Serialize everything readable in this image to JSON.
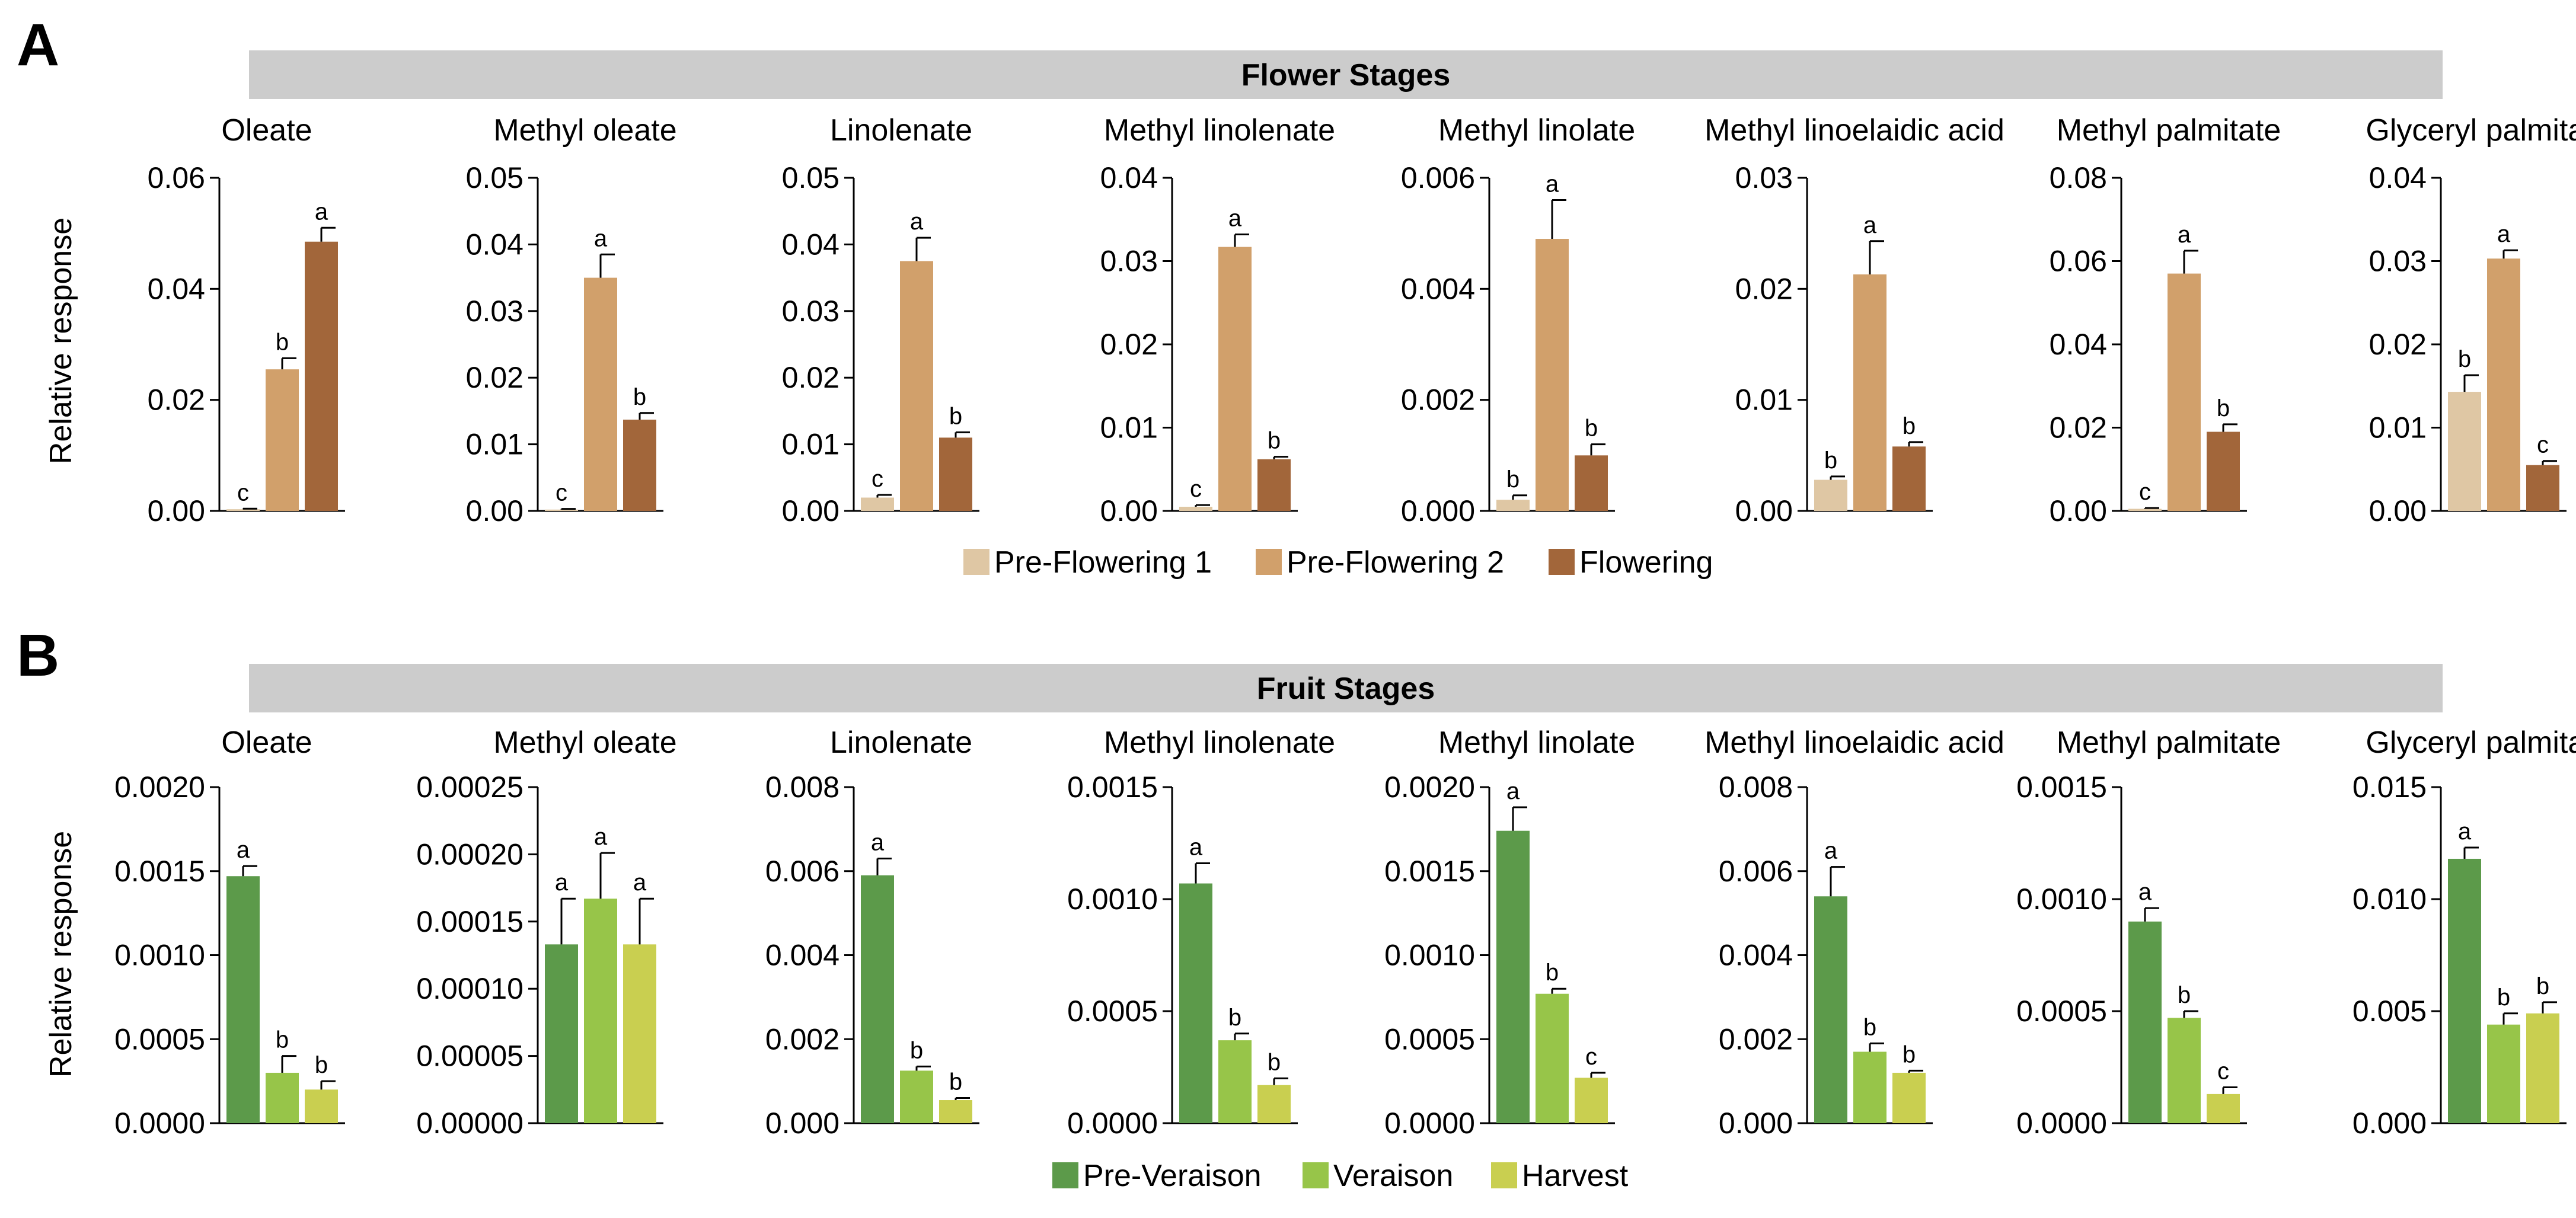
{
  "panels": [
    {
      "letter": "A",
      "banner": "Flower Stages",
      "ylabel": "Relative response",
      "legend": [
        {
          "label": "Pre-Flowering 1",
          "color": "#dfc7a4"
        },
        {
          "label": "Pre-Flowering 2",
          "color": "#d1a06b"
        },
        {
          "label": "Flowering",
          "color": "#a2663a"
        }
      ]
    },
    {
      "letter": "B",
      "banner": "Fruit Stages",
      "ylabel": "Relative response",
      "legend": [
        {
          "label": "Pre-Veraison",
          "color": "#5c9a4a"
        },
        {
          "label": "Veraison",
          "color": "#97c549"
        },
        {
          "label": "Harvest",
          "color": "#c9cf50"
        }
      ]
    }
  ],
  "chart_data": [
    {
      "type": "bar",
      "panel": "A",
      "title": "Oleate",
      "ylabel": "Relative response",
      "ylim": [
        0,
        0.06
      ],
      "ticks": [
        "0.00",
        "0.02",
        "0.04",
        "0.06"
      ],
      "series": [
        {
          "name": "Pre-Flowering 1",
          "value": 0.0003,
          "err": 0.0001,
          "letter": "c"
        },
        {
          "name": "Pre-Flowering 2",
          "value": 0.0255,
          "err": 0.002,
          "letter": "b"
        },
        {
          "name": "Flowering",
          "value": 0.0485,
          "err": 0.0025,
          "letter": "a"
        }
      ]
    },
    {
      "type": "bar",
      "panel": "A",
      "title": "Methyl oleate",
      "ylim": [
        0,
        0.05
      ],
      "ticks": [
        "0.00",
        "0.01",
        "0.02",
        "0.03",
        "0.04",
        "0.05"
      ],
      "series": [
        {
          "name": "Pre-Flowering 1",
          "value": 0.0002,
          "err": 0.0001,
          "letter": "c"
        },
        {
          "name": "Pre-Flowering 2",
          "value": 0.035,
          "err": 0.0035,
          "letter": "a"
        },
        {
          "name": "Flowering",
          "value": 0.0137,
          "err": 0.001,
          "letter": "b"
        }
      ]
    },
    {
      "type": "bar",
      "panel": "A",
      "title": "Linolenate",
      "ylim": [
        0,
        0.05
      ],
      "ticks": [
        "0.00",
        "0.01",
        "0.02",
        "0.03",
        "0.04",
        "0.05"
      ],
      "series": [
        {
          "name": "Pre-Flowering 1",
          "value": 0.002,
          "err": 0.0004,
          "letter": "c"
        },
        {
          "name": "Pre-Flowering 2",
          "value": 0.0375,
          "err": 0.0035,
          "letter": "a"
        },
        {
          "name": "Flowering",
          "value": 0.011,
          "err": 0.0008,
          "letter": "b"
        }
      ]
    },
    {
      "type": "bar",
      "panel": "A",
      "title": "Methyl linolenate",
      "ylim": [
        0,
        0.04
      ],
      "ticks": [
        "0.00",
        "0.01",
        "0.02",
        "0.03",
        "0.04"
      ],
      "series": [
        {
          "name": "Pre-Flowering 1",
          "value": 0.0005,
          "err": 0.0002,
          "letter": "c"
        },
        {
          "name": "Pre-Flowering 2",
          "value": 0.0317,
          "err": 0.0015,
          "letter": "a"
        },
        {
          "name": "Flowering",
          "value": 0.0062,
          "err": 0.0003,
          "letter": "b"
        }
      ]
    },
    {
      "type": "bar",
      "panel": "A",
      "title": "Methyl linolate",
      "ylim": [
        0,
        0.006
      ],
      "ticks": [
        "0.000",
        "0.002",
        "0.004",
        "0.006"
      ],
      "series": [
        {
          "name": "Pre-Flowering 1",
          "value": 0.0002,
          "err": 8e-05,
          "letter": "b"
        },
        {
          "name": "Pre-Flowering 2",
          "value": 0.0049,
          "err": 0.0007,
          "letter": "a"
        },
        {
          "name": "Flowering",
          "value": 0.001,
          "err": 0.0002,
          "letter": "b"
        }
      ]
    },
    {
      "type": "bar",
      "panel": "A",
      "title": "Methyl linoelaidic acid",
      "ylim": [
        0,
        0.03
      ],
      "ticks": [
        "0.00",
        "0.01",
        "0.02",
        "0.03"
      ],
      "series": [
        {
          "name": "Pre-Flowering 1",
          "value": 0.0028,
          "err": 0.0003,
          "letter": "b"
        },
        {
          "name": "Pre-Flowering 2",
          "value": 0.0213,
          "err": 0.003,
          "letter": "a"
        },
        {
          "name": "Flowering",
          "value": 0.0058,
          "err": 0.0004,
          "letter": "b"
        }
      ]
    },
    {
      "type": "bar",
      "panel": "A",
      "title": "Methyl palmitate",
      "ylim": [
        0,
        0.08
      ],
      "ticks": [
        "0.00",
        "0.02",
        "0.04",
        "0.06",
        "0.08"
      ],
      "series": [
        {
          "name": "Pre-Flowering 1",
          "value": 0.0005,
          "err": 0.0002,
          "letter": "c"
        },
        {
          "name": "Pre-Flowering 2",
          "value": 0.057,
          "err": 0.0055,
          "letter": "a"
        },
        {
          "name": "Flowering",
          "value": 0.019,
          "err": 0.0018,
          "letter": "b"
        }
      ]
    },
    {
      "type": "bar",
      "panel": "A",
      "title": "Glyceryl palmitate",
      "ylim": [
        0,
        0.04
      ],
      "ticks": [
        "0.00",
        "0.01",
        "0.02",
        "0.03",
        "0.04"
      ],
      "series": [
        {
          "name": "Pre-Flowering 1",
          "value": 0.0143,
          "err": 0.002,
          "letter": "b"
        },
        {
          "name": "Pre-Flowering 2",
          "value": 0.0303,
          "err": 0.001,
          "letter": "a"
        },
        {
          "name": "Flowering",
          "value": 0.0055,
          "err": 0.0005,
          "letter": "c"
        }
      ]
    },
    {
      "type": "bar",
      "panel": "B",
      "title": "Oleate",
      "ylabel": "Relative response",
      "ylim": [
        0,
        0.002
      ],
      "ticks": [
        "0.0000",
        "0.0005",
        "0.0010",
        "0.0015",
        "0.0020"
      ],
      "series": [
        {
          "name": "Pre-Veraison",
          "value": 0.00147,
          "err": 6e-05,
          "letter": "a"
        },
        {
          "name": "Veraison",
          "value": 0.0003,
          "err": 0.0001,
          "letter": "b"
        },
        {
          "name": "Harvest",
          "value": 0.0002,
          "err": 5e-05,
          "letter": "b"
        }
      ]
    },
    {
      "type": "bar",
      "panel": "B",
      "title": "Methyl oleate",
      "ylim": [
        0,
        0.00025
      ],
      "ticks": [
        "0.00000",
        "0.00005",
        "0.00010",
        "0.00015",
        "0.00020",
        "0.00025"
      ],
      "series": [
        {
          "name": "Pre-Veraison",
          "value": 0.000133,
          "err": 3.4e-05,
          "letter": "a"
        },
        {
          "name": "Veraison",
          "value": 0.000167,
          "err": 3.4e-05,
          "letter": "a"
        },
        {
          "name": "Harvest",
          "value": 0.000133,
          "err": 3.4e-05,
          "letter": "a"
        }
      ]
    },
    {
      "type": "bar",
      "panel": "B",
      "title": "Linolenate",
      "ylim": [
        0,
        0.008
      ],
      "ticks": [
        "0.000",
        "0.002",
        "0.004",
        "0.006",
        "0.008"
      ],
      "series": [
        {
          "name": "Pre-Veraison",
          "value": 0.0059,
          "err": 0.0004,
          "letter": "a"
        },
        {
          "name": "Veraison",
          "value": 0.00125,
          "err": 0.0001,
          "letter": "b"
        },
        {
          "name": "Harvest",
          "value": 0.00055,
          "err": 5e-05,
          "letter": "b"
        }
      ]
    },
    {
      "type": "bar",
      "panel": "B",
      "title": "Methyl linolenate",
      "ylim": [
        0,
        0.0015
      ],
      "ticks": [
        "0.0000",
        "0.0005",
        "0.0010",
        "0.0015"
      ],
      "series": [
        {
          "name": "Pre-Veraison",
          "value": 0.00107,
          "err": 9e-05,
          "letter": "a"
        },
        {
          "name": "Veraison",
          "value": 0.00037,
          "err": 3e-05,
          "letter": "b"
        },
        {
          "name": "Harvest",
          "value": 0.00017,
          "err": 3e-05,
          "letter": "b"
        }
      ]
    },
    {
      "type": "bar",
      "panel": "B",
      "title": "Methyl linolate",
      "ylim": [
        0,
        0.002
      ],
      "ticks": [
        "0.0000",
        "0.0005",
        "0.0010",
        "0.0015",
        "0.0020"
      ],
      "series": [
        {
          "name": "Pre-Veraison",
          "value": 0.00174,
          "err": 0.00014,
          "letter": "a"
        },
        {
          "name": "Veraison",
          "value": 0.00077,
          "err": 3e-05,
          "letter": "b"
        },
        {
          "name": "Harvest",
          "value": 0.00027,
          "err": 3e-05,
          "letter": "c"
        }
      ]
    },
    {
      "type": "bar",
      "panel": "B",
      "title": "Methyl linoelaidic acid",
      "ylim": [
        0,
        0.008
      ],
      "ticks": [
        "0.000",
        "0.002",
        "0.004",
        "0.006",
        "0.008"
      ],
      "series": [
        {
          "name": "Pre-Veraison",
          "value": 0.0054,
          "err": 0.0007,
          "letter": "a"
        },
        {
          "name": "Veraison",
          "value": 0.0017,
          "err": 0.0002,
          "letter": "b"
        },
        {
          "name": "Harvest",
          "value": 0.0012,
          "err": 5e-05,
          "letter": "b"
        }
      ]
    },
    {
      "type": "bar",
      "panel": "B",
      "title": "Methyl palmitate",
      "ylim": [
        0,
        0.0015
      ],
      "ticks": [
        "0.0000",
        "0.0005",
        "0.0010",
        "0.0015"
      ],
      "series": [
        {
          "name": "Pre-Veraison",
          "value": 0.0009,
          "err": 6e-05,
          "letter": "a"
        },
        {
          "name": "Veraison",
          "value": 0.00047,
          "err": 3e-05,
          "letter": "b"
        },
        {
          "name": "Harvest",
          "value": 0.00013,
          "err": 3e-05,
          "letter": "c"
        }
      ]
    },
    {
      "type": "bar",
      "panel": "B",
      "title": "Glyceryl palmitate",
      "ylim": [
        0,
        0.015
      ],
      "ticks": [
        "0.000",
        "0.005",
        "0.010",
        "0.015"
      ],
      "series": [
        {
          "name": "Pre-Veraison",
          "value": 0.0118,
          "err": 0.0005,
          "letter": "a"
        },
        {
          "name": "Veraison",
          "value": 0.0044,
          "err": 0.0005,
          "letter": "b"
        },
        {
          "name": "Harvest",
          "value": 0.0049,
          "err": 0.0005,
          "letter": "b"
        }
      ]
    }
  ]
}
